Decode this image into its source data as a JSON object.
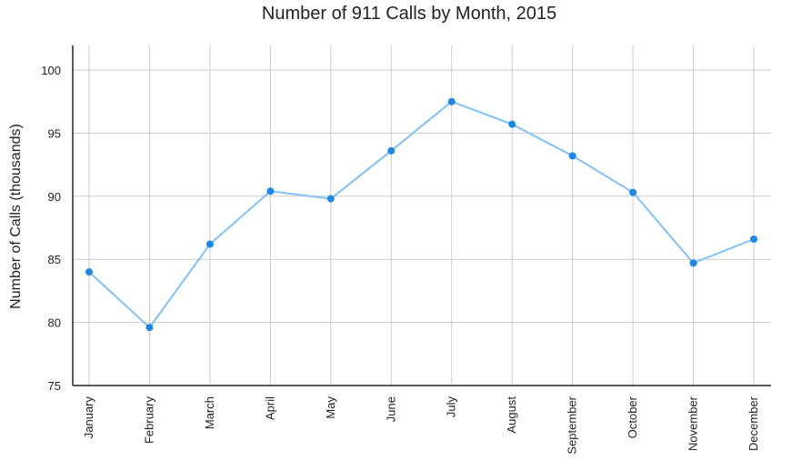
{
  "chart_data": {
    "type": "line",
    "title": "Number of 911 Calls by Month, 2015",
    "xlabel": "",
    "ylabel": "Number of Calls (thousands)",
    "categories": [
      "January",
      "February",
      "March",
      "April",
      "May",
      "June",
      "July",
      "August",
      "September",
      "October",
      "November",
      "December"
    ],
    "series": [
      {
        "values": [
          84.0,
          79.6,
          86.2,
          90.4,
          89.8,
          93.6,
          97.5,
          95.7,
          93.2,
          90.3,
          84.7,
          86.6
        ]
      }
    ],
    "ylim": [
      75,
      102
    ],
    "yticks": [
      75,
      80,
      85,
      90,
      95,
      100
    ],
    "grid": true,
    "legend": "none",
    "colors": {
      "line": "#82c1f5",
      "marker": "#1e88e5",
      "grid": "#cccccc",
      "axis": "#222222"
    }
  }
}
